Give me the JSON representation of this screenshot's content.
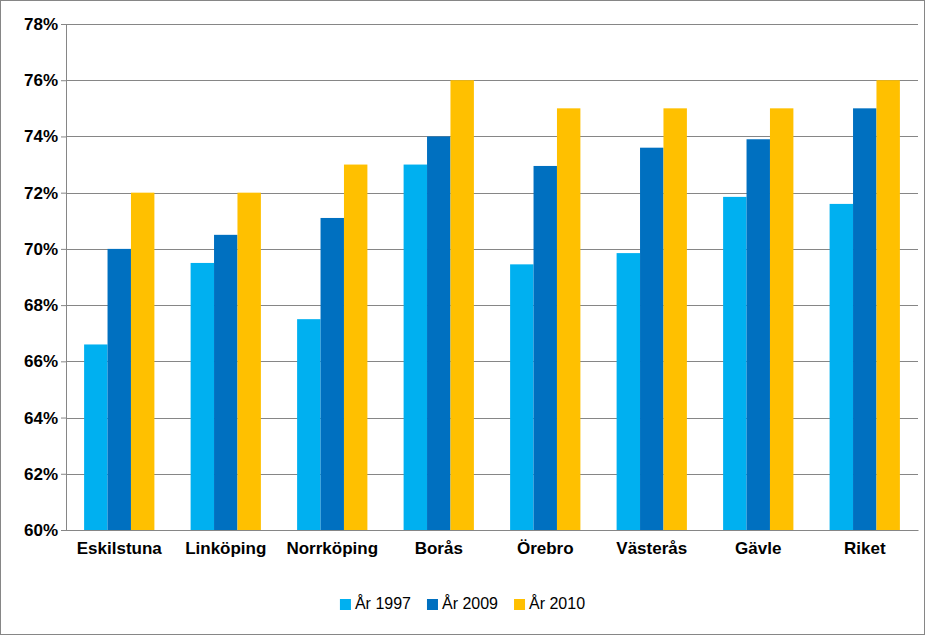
{
  "chart_data": {
    "type": "bar",
    "categories": [
      "Eskilstuna",
      "Linköping",
      "Norrköping",
      "Borås",
      "Örebro",
      "Västerås",
      "Gävle",
      "Riket"
    ],
    "series": [
      {
        "name": "År 1997",
        "color": "#00b0f0",
        "values": [
          66.6,
          69.5,
          67.5,
          73.0,
          69.45,
          69.85,
          71.85,
          71.6
        ]
      },
      {
        "name": "År 2009",
        "color": "#0070c0",
        "values": [
          70.0,
          70.5,
          71.1,
          74.0,
          72.95,
          73.6,
          73.9,
          75.0
        ]
      },
      {
        "name": "År 2010",
        "color": "#ffc000",
        "values": [
          72.0,
          72.0,
          73.0,
          76.0,
          75.0,
          75.0,
          75.0,
          76.0
        ]
      }
    ],
    "ylim": [
      60,
      78
    ],
    "yticks": [
      {
        "value": 60,
        "label": "60%"
      },
      {
        "value": 62,
        "label": "62%"
      },
      {
        "value": 64,
        "label": "64%"
      },
      {
        "value": 66,
        "label": "66%"
      },
      {
        "value": 68,
        "label": "68%"
      },
      {
        "value": 70,
        "label": "70%"
      },
      {
        "value": 72,
        "label": "72%"
      },
      {
        "value": 74,
        "label": "74%"
      },
      {
        "value": 76,
        "label": "76%"
      },
      {
        "value": 78,
        "label": "78%"
      }
    ],
    "grid": true,
    "legend": "bottom"
  }
}
